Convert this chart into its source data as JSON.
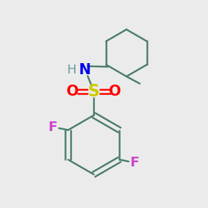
{
  "background_color": "#ebebeb",
  "bond_color": "#4a7c6e",
  "bond_width": 1.8,
  "atom_colors": {
    "F1": "#cc44cc",
    "F2": "#cc44cc",
    "N": "#0000ee",
    "H": "#6a9a9a",
    "S": "#cccc00",
    "O1": "#ff0000",
    "O2": "#ff0000"
  },
  "figsize": [
    3.0,
    3.0
  ],
  "dpi": 100,
  "xlim": [
    0,
    10
  ],
  "ylim": [
    0,
    10
  ]
}
